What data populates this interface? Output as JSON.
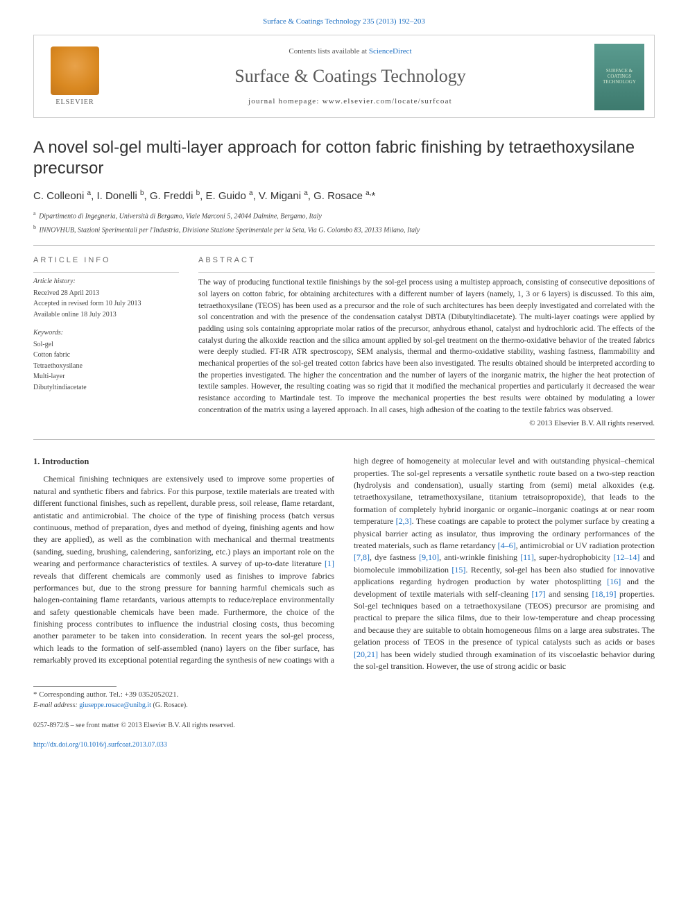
{
  "top_link": {
    "journal": "Surface & Coatings Technology",
    "cite": "235 (2013) 192–203"
  },
  "header": {
    "elsevier_label": "ELSEVIER",
    "contents_prefix": "Contents lists available at ",
    "contents_link": "ScienceDirect",
    "journal_name": "Surface & Coatings Technology",
    "homepage_prefix": "journal homepage: ",
    "homepage_url": "www.elsevier.com/locate/surfcoat",
    "cover_text": "SURFACE & COATINGS TECHNOLOGY"
  },
  "title": "A novel sol-gel multi-layer approach for cotton fabric finishing by tetraethoxysilane precursor",
  "authors_html": "C. Colleoni <sup>a</sup>, I. Donelli <sup>b</sup>, G. Freddi <sup>b</sup>, E. Guido <sup>a</sup>, V. Migani <sup>a</sup>, G. Rosace <sup>a,</sup>*",
  "affiliations": [
    {
      "tag": "a",
      "text": "Dipartimento di Ingegneria, Università di Bergamo, Viale Marconi 5, 24044 Dalmine, Bergamo, Italy"
    },
    {
      "tag": "b",
      "text": "INNOVHUB, Stazioni Sperimentali per l'Industria, Divisione Stazione Sperimentale per la Seta, Via G. Colombo 83, 20133 Milano, Italy"
    }
  ],
  "article_info": {
    "head": "ARTICLE INFO",
    "history_head": "Article history:",
    "history": [
      "Received 28 April 2013",
      "Accepted in revised form 10 July 2013",
      "Available online 18 July 2013"
    ],
    "keywords_head": "Keywords:",
    "keywords": [
      "Sol-gel",
      "Cotton fabric",
      "Tetraethoxysilane",
      "Multi-layer",
      "Dibutyltindiacetate"
    ]
  },
  "abstract": {
    "head": "ABSTRACT",
    "text": "The way of producing functional textile finishings by the sol-gel process using a multistep approach, consisting of consecutive depositions of sol layers on cotton fabric, for obtaining architectures with a different number of layers (namely, 1, 3 or 6 layers) is discussed. To this aim, tetraethoxysilane (TEOS) has been used as a precursor and the role of such architectures has been deeply investigated and correlated with the sol concentration and with the presence of the condensation catalyst DBTA (Dibutyltindiacetate). The multi-layer coatings were applied by padding using sols containing appropriate molar ratios of the precursor, anhydrous ethanol, catalyst and hydrochloric acid. The effects of the catalyst during the alkoxide reaction and the silica amount applied by sol-gel treatment on the thermo-oxidative behavior of the treated fabrics were deeply studied. FT-IR ATR spectroscopy, SEM analysis, thermal and thermo-oxidative stability, washing fastness, flammability and mechanical properties of the sol-gel treated cotton fabrics have been also investigated. The results obtained should be interpreted according to the properties investigated. The higher the concentration and the number of layers of the inorganic matrix, the higher the heat protection of textile samples. However, the resulting coating was so rigid that it modified the mechanical properties and particularly it decreased the wear resistance according to Martindale test. To improve the mechanical properties the best results were obtained by modulating a lower concentration of the matrix using a layered approach. In all cases, high adhesion of the coating to the textile fabrics was observed.",
    "copyright": "© 2013 Elsevier B.V. All rights reserved."
  },
  "intro": {
    "title": "1. Introduction",
    "para1_pre": "Chemical finishing techniques are extensively used to improve some properties of natural and synthetic fibers and fabrics. For this purpose, textile materials are treated with different functional finishes, such as repellent, durable press, soil release, flame retardant, antistatic and antimicrobial. The choice of the type of finishing process (batch versus continuous, method of preparation, dyes and method of dyeing, finishing agents and how they are applied), as well as the combination with mechanical and thermal treatments (sanding, sueding, brushing, calendering, sanforizing, etc.) plays an important role on the wearing and performance characteristics of textiles. A survey of up-to-date literature ",
    "ref1": "[1]",
    "para1_post": " reveals that different chemicals are commonly used as finishes to improve fabrics performances but, due to the strong pressure for banning harmful chemicals such as halogen-containing flame retardants, various attempts to reduce/replace environmentally and safety questionable chemicals have been made. Furthermore, the choice of the finishing process contributes to influence the industrial closing costs, thus becoming another parameter to be taken into consideration. In recent years the sol-gel process, which leads to the formation of self-assembled (nano)",
    "para2_a": "layers on the fiber surface, has remarkably proved its exceptional potential regarding the synthesis of new coatings with a high degree of homogeneity at molecular level and with outstanding physical–chemical properties. The sol-gel represents a versatile synthetic route based on a two-step reaction (hydrolysis and condensation), usually starting from (semi) metal alkoxides (e.g. tetraethoxysilane, tetramethoxysilane, titanium tetraisopropoxide), that leads to the formation of completely hybrid inorganic or organic–inorganic coatings at or near room temperature ",
    "ref23": "[2,3]",
    "para2_b": ". These coatings are capable to protect the polymer surface by creating a physical barrier acting as insulator, thus improving the ordinary performances of the treated materials, such as flame retardancy ",
    "ref46": "[4–6]",
    "para2_c": ", antimicrobial or UV radiation protection ",
    "ref78": "[7,8]",
    "para2_d": ", dye fastness ",
    "ref910": "[9,10]",
    "para2_e": ", anti-wrinkle finishing ",
    "ref11": "[11]",
    "para2_f": ", super-hydrophobicity ",
    "ref1214": "[12–14]",
    "para2_g": " and biomolecule immobilization ",
    "ref15": "[15]",
    "para2_h": ". Recently, sol-gel has been also studied for innovative applications regarding hydrogen production by water photosplitting ",
    "ref16": "[16]",
    "para2_i": " and the development of textile materials with self-cleaning ",
    "ref17": "[17]",
    "para2_j": " and sensing ",
    "ref1819": "[18,19]",
    "para2_k": " properties. Sol-gel techniques based on a tetraethoxysilane (TEOS) precursor are promising and practical to prepare the silica films, due to their low-temperature and cheap processing and because they are suitable to obtain homogeneous films on a large area substrates. The gelation process of TEOS in the presence of typical catalysts such as acids or bases ",
    "ref2021": "[20,21]",
    "para2_l": " has been widely studied through examination of its viscoelastic behavior during the sol-gel transition. However, the use of strong acidic or basic"
  },
  "footnote": {
    "corr": "* Corresponding author. Tel.: +39 0352052021.",
    "email_label": "E-mail address: ",
    "email": "giuseppe.rosace@unibg.it",
    "email_suffix": " (G. Rosace)."
  },
  "footer": {
    "issn": "0257-8972/$ – see front matter © 2013 Elsevier B.V. All rights reserved.",
    "doi_url": "http://dx.doi.org/10.1016/j.surfcoat.2013.07.033"
  },
  "colors": {
    "link": "#1b6ec2",
    "text": "#333333",
    "rule": "#b8b8b8",
    "cover_bg_top": "#5a9b8f",
    "cover_bg_bottom": "#3d7a6e"
  }
}
